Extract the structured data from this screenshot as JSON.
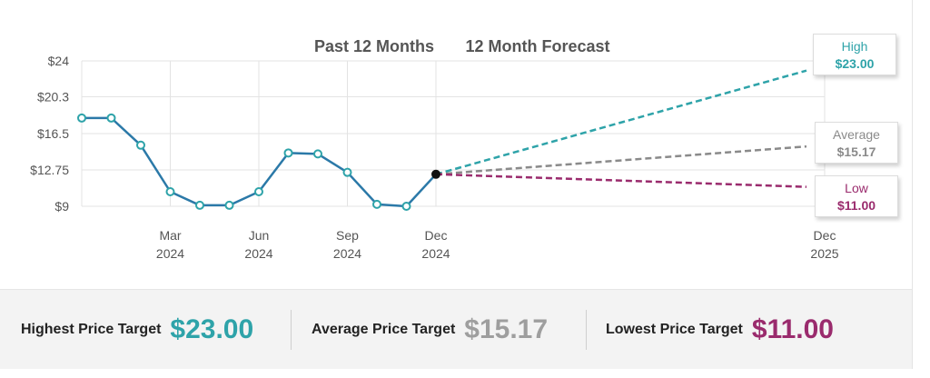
{
  "colors": {
    "history": "#2b79a8",
    "high": "#2ea3a9",
    "average": "#8a8a8a",
    "low": "#9a2b6d",
    "grid": "#e3e3e3"
  },
  "chart_data": {
    "type": "line",
    "title": "Past 12 Months",
    "forecast_title": "12 Month Forecast",
    "y_ticks": [
      {
        "label": "$24",
        "value": 24
      },
      {
        "label": "$20.3",
        "value": 20.3
      },
      {
        "label": "$16.5",
        "value": 16.5
      },
      {
        "label": "$12.75",
        "value": 12.75
      },
      {
        "label": "$9",
        "value": 9
      }
    ],
    "ylim": [
      9,
      24
    ],
    "x_ticks": [
      {
        "month": "Mar",
        "year": "2024",
        "date": "2024-03"
      },
      {
        "month": "Jun",
        "year": "2024",
        "date": "2024-06"
      },
      {
        "month": "Sep",
        "year": "2024",
        "date": "2024-09"
      },
      {
        "month": "Dec",
        "year": "2024",
        "date": "2024-12"
      },
      {
        "month": "Dec",
        "year": "2025",
        "date": "2025-12"
      }
    ],
    "history": {
      "dates": [
        "2023-12",
        "2024-01",
        "2024-02",
        "2024-03",
        "2024-04",
        "2024-05",
        "2024-06",
        "2024-07",
        "2024-08",
        "2024-09",
        "2024-10",
        "2024-11",
        "2024-12"
      ],
      "values": [
        18.1,
        18.1,
        15.3,
        10.5,
        9.1,
        9.1,
        10.5,
        14.5,
        14.4,
        12.5,
        9.2,
        9.0,
        12.3
      ]
    },
    "forecast": [
      {
        "name": "High",
        "value": 23.0,
        "label": "$23.00"
      },
      {
        "name": "Average",
        "value": 15.17,
        "label": "$15.17"
      },
      {
        "name": "Low",
        "value": 11.0,
        "label": "$11.00"
      }
    ]
  },
  "summary": {
    "highest": {
      "label": "Highest Price Target",
      "value": "$23.00"
    },
    "average": {
      "label": "Average Price Target",
      "value": "$15.17"
    },
    "lowest": {
      "label": "Lowest Price Target",
      "value": "$11.00"
    }
  }
}
